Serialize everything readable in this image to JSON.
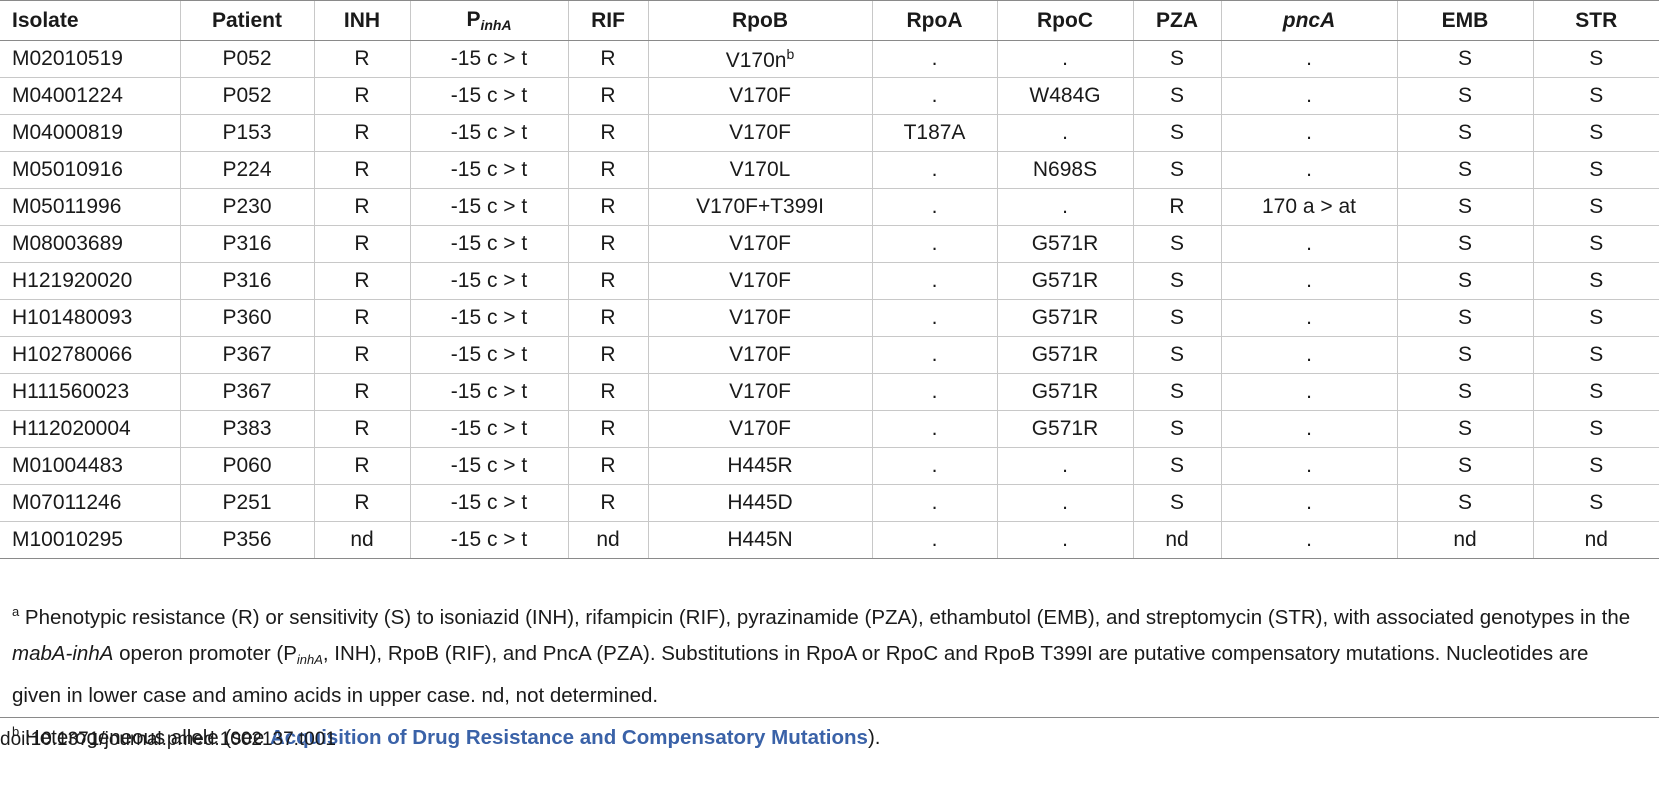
{
  "table": {
    "headers": {
      "isolate": "Isolate",
      "patient": "Patient",
      "inh": "INH",
      "pinha_main": "P",
      "pinha_sub": "inhA",
      "rif": "RIF",
      "rpob": "RpoB",
      "rpoa": "RpoA",
      "rpoc": "RpoC",
      "pza": "PZA",
      "pnca": "pncA",
      "emb": "EMB",
      "str": "STR"
    },
    "rows": [
      [
        "M02010519",
        "P052",
        "R",
        "-15 c > t",
        "R",
        "V170n",
        ".",
        ".",
        "S",
        ".",
        "S",
        "S"
      ],
      [
        "M04001224",
        "P052",
        "R",
        "-15 c > t",
        "R",
        "V170F",
        ".",
        "W484G",
        "S",
        ".",
        "S",
        "S"
      ],
      [
        "M04000819",
        "P153",
        "R",
        "-15 c > t",
        "R",
        "V170F",
        "T187A",
        ".",
        "S",
        ".",
        "S",
        "S"
      ],
      [
        "M05010916",
        "P224",
        "R",
        "-15 c > t",
        "R",
        "V170L",
        ".",
        "N698S",
        "S",
        ".",
        "S",
        "S"
      ],
      [
        "M05011996",
        "P230",
        "R",
        "-15 c > t",
        "R",
        "V170F+T399I",
        ".",
        ".",
        "R",
        "170 a > at",
        "S",
        "S"
      ],
      [
        "M08003689",
        "P316",
        "R",
        "-15 c > t",
        "R",
        "V170F",
        ".",
        "G571R",
        "S",
        ".",
        "S",
        "S"
      ],
      [
        "H121920020",
        "P316",
        "R",
        "-15 c > t",
        "R",
        "V170F",
        ".",
        "G571R",
        "S",
        ".",
        "S",
        "S"
      ],
      [
        "H101480093",
        "P360",
        "R",
        "-15 c > t",
        "R",
        "V170F",
        ".",
        "G571R",
        "S",
        ".",
        "S",
        "S"
      ],
      [
        "H102780066",
        "P367",
        "R",
        "-15 c > t",
        "R",
        "V170F",
        ".",
        "G571R",
        "S",
        ".",
        "S",
        "S"
      ],
      [
        "H111560023",
        "P367",
        "R",
        "-15 c > t",
        "R",
        "V170F",
        ".",
        "G571R",
        "S",
        ".",
        "S",
        "S"
      ],
      [
        "H112020004",
        "P383",
        "R",
        "-15 c > t",
        "R",
        "V170F",
        ".",
        "G571R",
        "S",
        ".",
        "S",
        "S"
      ],
      [
        "M01004483",
        "P060",
        "R",
        "-15 c > t",
        "R",
        "H445R",
        ".",
        ".",
        "S",
        ".",
        "S",
        "S"
      ],
      [
        "M07011246",
        "P251",
        "R",
        "-15 c > t",
        "R",
        "H445D",
        ".",
        ".",
        "S",
        ".",
        "S",
        "S"
      ],
      [
        "M10010295",
        "P356",
        "nd",
        "-15 c > t",
        "nd",
        "H445N",
        ".",
        ".",
        "nd",
        ".",
        "nd",
        "nd"
      ]
    ],
    "row0_rpob_sup": "b"
  },
  "footnotes": {
    "a_mark": "a",
    "a_part1": " Phenotypic resistance (R) or sensitivity (S) to isoniazid (INH), rifampicin (RIF), pyrazinamide (PZA), ethambutol (EMB), and streptomycin (STR), with associated genotypes in the ",
    "a_italic": "mabA-inhA",
    "a_part2": " operon promoter (P",
    "a_sub": "inhA",
    "a_part3": ", INH), RpoB (RIF), and PncA (PZA). Substitutions in RpoA or RpoC and RpoB T399I are putative compensatory mutations. Nucleotides are given in lower case and amino acids in upper case. nd, not determined.",
    "b_mark": "b",
    "b_part1": " Heterogeneous allele (see ",
    "b_link": "Acquisition of Drug Resistance and Compensatory Mutations",
    "b_part2": ")."
  },
  "doi": "doi:10.1371/journal.pmed.1002137.t001",
  "colors": {
    "link": "#3a62a8",
    "rule": "#8a8a8a",
    "cell_border": "#c8c8c8"
  }
}
